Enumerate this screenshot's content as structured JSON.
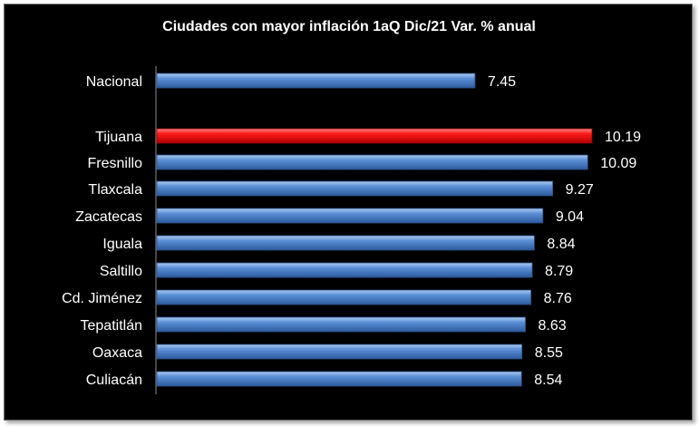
{
  "chart_data": {
    "type": "bar",
    "orientation": "horizontal",
    "title": "Ciudades con mayor inflación 1aQ Dic/21 Var. % anual",
    "categories": [
      "Nacional",
      "Tijuana",
      "Fresnillo",
      "Tlaxcala",
      "Zacatecas",
      "Iguala",
      "Saltillo",
      "Cd. Jiménez",
      "Tepatitlán",
      "Oaxaca",
      "Culiacán"
    ],
    "values": [
      7.45,
      10.19,
      10.09,
      9.27,
      9.04,
      8.84,
      8.79,
      8.76,
      8.63,
      8.55,
      8.54
    ],
    "value_labels": [
      "7.45",
      "10.19",
      "10.09",
      "9.27",
      "9.04",
      "8.84",
      "8.79",
      "8.76",
      "8.63",
      "8.55",
      "8.54"
    ],
    "xlim": [
      0,
      10.19
    ],
    "grid": false,
    "legend": "none",
    "colors": {
      "background": "#000000",
      "bar": "#4f81bd",
      "highlight": "#ff0000",
      "text": "#ffffff",
      "axis": "#8c8c8c"
    },
    "highlight_category": "Tijuana"
  }
}
